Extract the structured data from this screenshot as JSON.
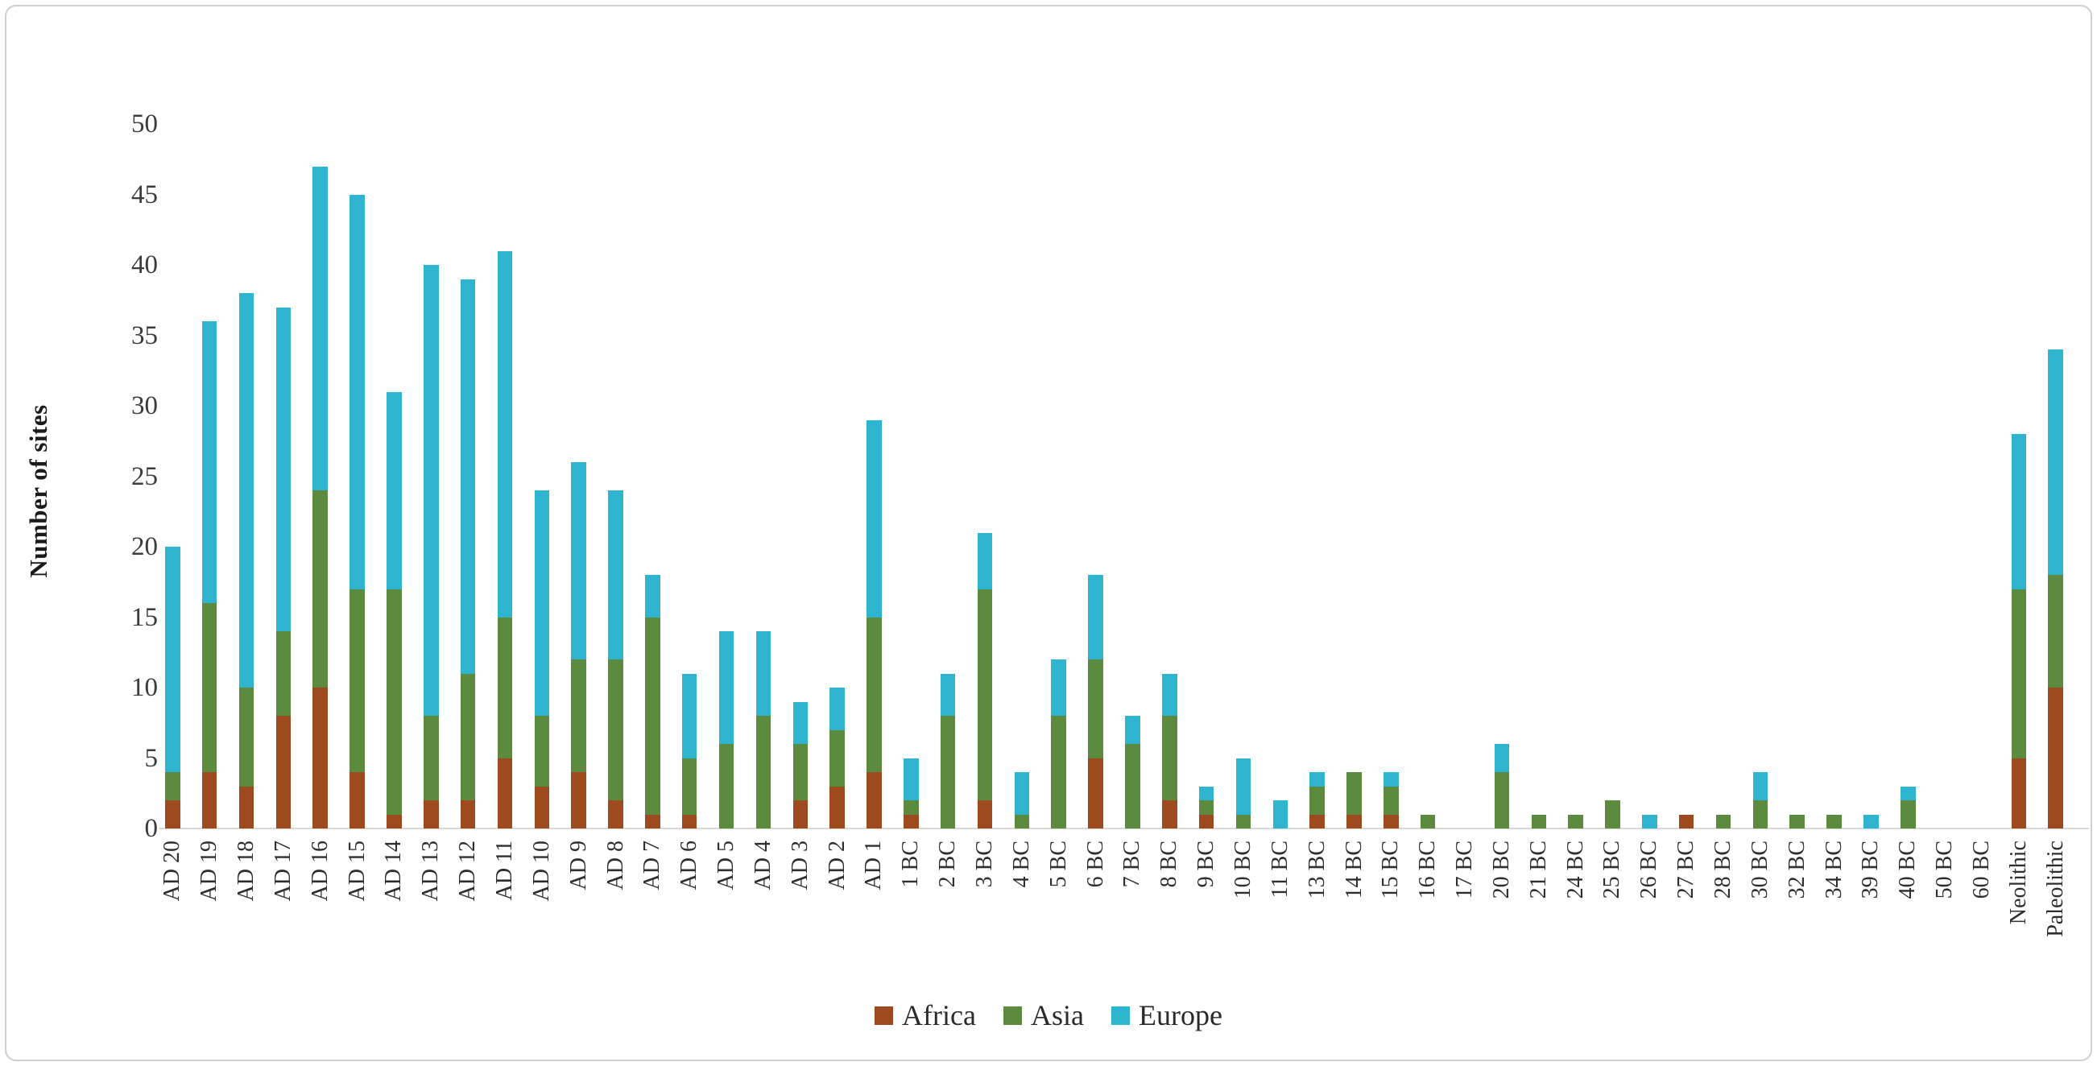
{
  "chart_data": {
    "type": "bar",
    "stacked": true,
    "title": "",
    "xlabel": "",
    "ylabel": "Number of sites",
    "ylim": [
      0,
      50
    ],
    "ytick_step": 5,
    "y_ticks": [
      0,
      5,
      10,
      15,
      20,
      25,
      30,
      35,
      40,
      45,
      50
    ],
    "grid": false,
    "legend_position": "bottom",
    "categories": [
      "AD 20",
      "AD 19",
      "AD 18",
      "AD 17",
      "AD 16",
      "AD 15",
      "AD 14",
      "AD 13",
      "AD 12",
      "AD 11",
      "AD 10",
      "AD 9",
      "AD 8",
      "AD 7",
      "AD 6",
      "AD 5",
      "AD 4",
      "AD 3",
      "AD 2",
      "AD 1",
      "1 BC",
      "2 BC",
      "3 BC",
      "4 BC",
      "5 BC",
      "6 BC",
      "7 BC",
      "8 BC",
      "9 BC",
      "10 BC",
      "11 BC",
      "13 BC",
      "14 BC",
      "15 BC",
      "16 BC",
      "17 BC",
      "20 BC",
      "21 BC",
      "24 BC",
      "25 BC",
      "26 BC",
      "27 BC",
      "28 BC",
      "30 BC",
      "32 BC",
      "34 BC",
      "39 BC",
      "40 BC",
      "50 BC",
      "60 BC",
      "Neolithic",
      "Paleolithic"
    ],
    "series": [
      {
        "name": "Africa",
        "color": "#9C4A1E",
        "values": [
          2,
          4,
          3,
          8,
          10,
          4,
          1,
          2,
          2,
          5,
          3,
          4,
          2,
          1,
          1,
          0,
          0,
          2,
          3,
          4,
          1,
          0,
          2,
          0,
          0,
          5,
          0,
          2,
          1,
          0,
          0,
          1,
          1,
          1,
          0,
          0,
          0,
          0,
          0,
          0,
          0,
          1,
          0,
          0,
          0,
          0,
          0,
          0,
          0,
          0,
          5,
          10
        ]
      },
      {
        "name": "Asia",
        "color": "#5C8A3E",
        "values": [
          2,
          12,
          7,
          6,
          14,
          13,
          16,
          6,
          9,
          10,
          5,
          8,
          10,
          14,
          4,
          6,
          8,
          4,
          4,
          11,
          1,
          8,
          15,
          1,
          8,
          7,
          6,
          6,
          1,
          1,
          0,
          2,
          3,
          2,
          1,
          0,
          4,
          1,
          1,
          2,
          0,
          0,
          1,
          2,
          1,
          1,
          0,
          2,
          0,
          0,
          12,
          8
        ]
      },
      {
        "name": "Europe",
        "color": "#2FB4CF",
        "values": [
          16,
          20,
          28,
          23,
          23,
          28,
          14,
          32,
          28,
          26,
          16,
          14,
          12,
          3,
          6,
          8,
          6,
          3,
          3,
          14,
          3,
          3,
          4,
          3,
          4,
          6,
          2,
          3,
          1,
          4,
          2,
          1,
          0,
          1,
          0,
          0,
          2,
          0,
          0,
          0,
          1,
          0,
          0,
          2,
          0,
          0,
          1,
          1,
          0,
          0,
          11,
          16
        ]
      }
    ],
    "axis_text_color": "#3b3b3b",
    "baseline_color": "#d9d9d9"
  }
}
